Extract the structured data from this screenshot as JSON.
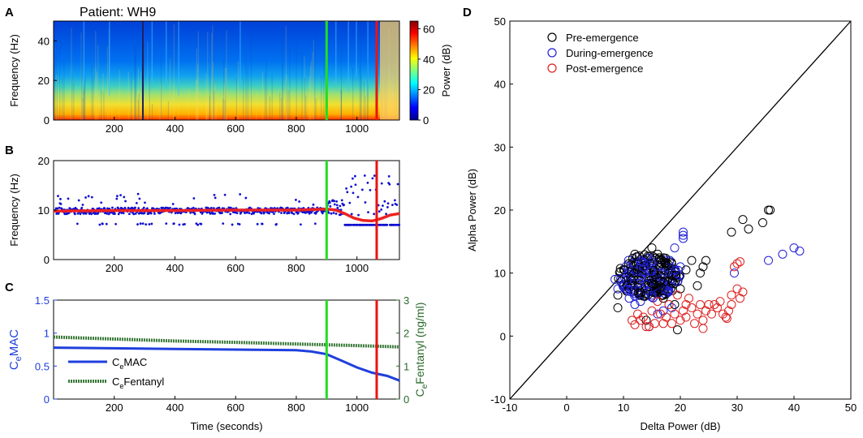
{
  "panels": {
    "A": {
      "letter": "A",
      "title": "Patient: WH9",
      "ylabel": "Frequency (Hz)",
      "colorbar_label": "Power (dB)"
    },
    "B": {
      "letter": "B",
      "ylabel": "Frequency (Hz)"
    },
    "C": {
      "letter": "C",
      "ylabel_left": "CeMAC",
      "ylabel_right": "CeFentanyl (ng/ml)",
      "xlabel": "Time (seconds)"
    },
    "D": {
      "letter": "D",
      "xlabel": "Delta Power (dB)",
      "ylabel": "Alpha Power (dB)"
    }
  },
  "colors": {
    "pre": "#000000",
    "during": "#1f1fd6",
    "post": "#dd1f1f",
    "green_marker": "#22dd22",
    "red_marker": "#ee1111",
    "cemac": "#1f3fdd",
    "fentanyl": "#3a7a3a",
    "fit": "#ee2222",
    "peak_dots": "#1010d0"
  },
  "chart_data": [
    {
      "id": "A",
      "type": "heatmap",
      "title": "Patient: WH9",
      "ylabel": "Frequency (Hz)",
      "xlim": [
        0,
        1140
      ],
      "ylim": [
        0,
        50
      ],
      "xticks": [
        200,
        400,
        600,
        800,
        1000
      ],
      "yticks": [
        0,
        20,
        40
      ],
      "colorbar": {
        "label": "Power (dB)",
        "range": [
          0,
          65
        ],
        "ticks": [
          0,
          20,
          40,
          60
        ]
      },
      "markers": [
        {
          "x": 900,
          "color": "green"
        },
        {
          "x": 1065,
          "color": "red"
        }
      ]
    },
    {
      "id": "B",
      "type": "scatter",
      "ylabel": "Frequency (Hz)",
      "xlim": [
        0,
        1140
      ],
      "ylim": [
        0,
        20
      ],
      "xticks": [
        200,
        400,
        600,
        800,
        1000
      ],
      "yticks": [
        0,
        10,
        20
      ],
      "markers": [
        {
          "x": 900,
          "color": "green"
        },
        {
          "x": 1065,
          "color": "red"
        }
      ],
      "fit_line": {
        "x": [
          0,
          200,
          400,
          600,
          800,
          900,
          930,
          960,
          990,
          1020,
          1050,
          1080,
          1110,
          1140
        ],
        "y": [
          9.8,
          9.9,
          9.9,
          10.0,
          10.0,
          10.2,
          10.0,
          9.3,
          8.4,
          7.9,
          7.8,
          8.3,
          9.0,
          9.3
        ]
      }
    },
    {
      "id": "C",
      "type": "line",
      "xlabel": "Time (seconds)",
      "xlim": [
        0,
        1140
      ],
      "xticks": [
        200,
        400,
        600,
        800,
        1000
      ],
      "ylim_left": [
        0,
        1.5
      ],
      "yticks_left": [
        0,
        0.5,
        1,
        1.5
      ],
      "ylim_right": [
        0,
        3
      ],
      "yticks_right": [
        0,
        1,
        2,
        3
      ],
      "legend": [
        "CeMAC",
        "CeFentanyl"
      ],
      "markers": [
        {
          "x": 900,
          "color": "green"
        },
        {
          "x": 1065,
          "color": "red"
        }
      ],
      "series": [
        {
          "name": "CeMAC",
          "axis": "left",
          "x": [
            0,
            200,
            400,
            600,
            800,
            850,
            900,
            950,
            1000,
            1050,
            1100,
            1140
          ],
          "y": [
            0.78,
            0.77,
            0.76,
            0.75,
            0.74,
            0.72,
            0.68,
            0.58,
            0.48,
            0.4,
            0.35,
            0.28
          ]
        },
        {
          "name": "CeFentanyl",
          "axis": "right",
          "x": [
            0,
            200,
            400,
            600,
            800,
            1000,
            1140
          ],
          "y": [
            1.88,
            1.82,
            1.76,
            1.72,
            1.67,
            1.62,
            1.58
          ]
        }
      ]
    },
    {
      "id": "D",
      "type": "scatter",
      "xlabel": "Delta Power (dB)",
      "ylabel": "Alpha Power (dB)",
      "xlim": [
        -10,
        50
      ],
      "ylim": [
        -10,
        50
      ],
      "xticks": [
        -10,
        0,
        10,
        20,
        30,
        40,
        50
      ],
      "yticks": [
        -10,
        0,
        10,
        20,
        30,
        40,
        50
      ],
      "diagonal": true,
      "legend": [
        "Pre-emergence",
        "During-emergence",
        "Post-emergence"
      ],
      "series": [
        {
          "name": "Pre-emergence",
          "points": [
            [
              35.5,
              20
            ],
            [
              35.8,
              20
            ],
            [
              31,
              18.5
            ],
            [
              34.5,
              18
            ],
            [
              32,
              17
            ],
            [
              29,
              16.5
            ],
            [
              24.5,
              12
            ],
            [
              24,
              11
            ],
            [
              23.5,
              10
            ],
            [
              22,
              12
            ],
            [
              21,
              10.5
            ],
            [
              20,
              7.5
            ],
            [
              9,
              4.5
            ],
            [
              14,
              2.5
            ],
            [
              19.5,
              1
            ],
            [
              17,
              6
            ],
            [
              19,
              5
            ],
            [
              23,
              8
            ],
            [
              9,
              6.5
            ],
            [
              15,
              14
            ],
            [
              16,
              13
            ],
            [
              12,
              13
            ]
          ]
        },
        {
          "name": "During-emergence",
          "points": [
            [
              20.5,
              16.5
            ],
            [
              20.5,
              16
            ],
            [
              20.5,
              15.5
            ],
            [
              19,
              14
            ],
            [
              40,
              14
            ],
            [
              41,
              13.5
            ],
            [
              38,
              13
            ],
            [
              35.5,
              12
            ],
            [
              29.5,
              10
            ],
            [
              14.5,
              1.5
            ],
            [
              20,
              11
            ],
            [
              8.5,
              9
            ],
            [
              9,
              7.5
            ],
            [
              11,
              6
            ],
            [
              12,
              5
            ],
            [
              13,
              5.5
            ],
            [
              15,
              6.5
            ],
            [
              17,
              4
            ],
            [
              18.5,
              4.5
            ],
            [
              16,
              3.5
            ]
          ]
        },
        {
          "name": "Post-emergence",
          "points": [
            [
              30.5,
              11.8
            ],
            [
              30,
              11.5
            ],
            [
              29.5,
              11
            ],
            [
              31,
              7
            ],
            [
              30.5,
              6
            ],
            [
              30,
              7.5
            ],
            [
              29,
              6.5
            ],
            [
              29,
              5
            ],
            [
              28.5,
              4
            ],
            [
              28,
              3
            ],
            [
              27.5,
              3.5
            ],
            [
              27,
              5.5
            ],
            [
              26.5,
              4.5
            ],
            [
              26,
              5
            ],
            [
              25.5,
              3.5
            ],
            [
              25,
              5
            ],
            [
              24.5,
              4
            ],
            [
              24,
              2.5
            ],
            [
              24,
              1.2
            ],
            [
              23.5,
              5
            ],
            [
              23,
              3.5
            ],
            [
              22.5,
              2
            ],
            [
              22,
              4.5
            ],
            [
              21.5,
              6
            ],
            [
              21,
              5
            ],
            [
              21,
              3
            ],
            [
              20.5,
              4
            ],
            [
              20,
              2.5
            ],
            [
              19.5,
              6.5
            ],
            [
              19,
              3.5
            ],
            [
              18.5,
              2
            ],
            [
              18,
              5
            ],
            [
              17.5,
              3
            ],
            [
              17,
              2
            ],
            [
              16.5,
              3.5
            ],
            [
              16,
              5.5
            ],
            [
              15.5,
              2
            ],
            [
              15,
              4
            ],
            [
              14,
              1.5
            ],
            [
              13.5,
              3
            ],
            [
              13,
              2.5
            ],
            [
              12.5,
              3.5
            ],
            [
              12,
              1.8
            ],
            [
              11.5,
              2.5
            ],
            [
              14.5,
              1.5
            ],
            [
              28.2,
              2.8
            ]
          ]
        }
      ]
    }
  ]
}
